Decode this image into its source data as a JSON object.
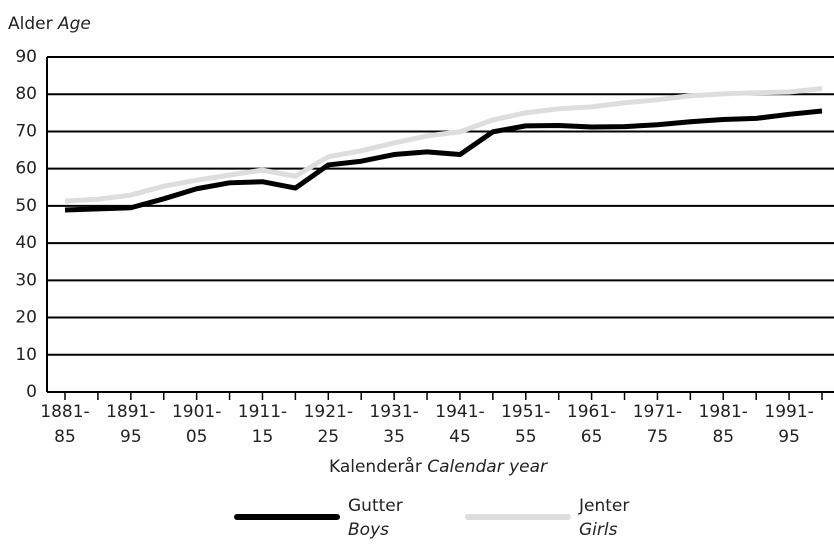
{
  "chart_data": {
    "type": "line",
    "y_label": {
      "main": "Alder",
      "translation": "Age"
    },
    "x_label": {
      "main": "Kalenderår",
      "translation": "Calendar year"
    },
    "categories": [
      [
        "1881-",
        "85"
      ],
      null,
      [
        "1891-",
        "95"
      ],
      null,
      [
        "1901-",
        "05"
      ],
      null,
      [
        "1911-",
        "15"
      ],
      null,
      [
        "1921-",
        "25"
      ],
      null,
      [
        "1931-",
        "35"
      ],
      null,
      [
        "1941-",
        "45"
      ],
      null,
      [
        "1951-",
        "55"
      ],
      null,
      [
        "1961-",
        "65"
      ],
      null,
      [
        "1971-",
        "75"
      ],
      null,
      [
        "1981-",
        "85"
      ],
      null,
      [
        "1991-",
        "95"
      ],
      null
    ],
    "series": [
      {
        "name": "Gutter",
        "translation": "Boys",
        "color": "#000000",
        "values": [
          48.9,
          49.2,
          49.5,
          51.9,
          54.6,
          56.2,
          56.5,
          54.8,
          61.0,
          62.0,
          63.8,
          64.5,
          63.8,
          69.9,
          71.5,
          71.6,
          71.2,
          71.3,
          71.8,
          72.6,
          73.2,
          73.5,
          74.6,
          75.5
        ]
      },
      {
        "name": "Jenter",
        "translation": "Girls",
        "color": "#dddddd",
        "values": [
          51.3,
          51.8,
          52.9,
          55.3,
          56.9,
          58.3,
          59.6,
          58.0,
          63.2,
          64.8,
          66.9,
          68.8,
          69.9,
          73.1,
          75.0,
          76.1,
          76.6,
          77.7,
          78.5,
          79.6,
          80.1,
          80.4,
          80.6,
          81.5
        ]
      }
    ],
    "ylim": [
      0,
      90
    ],
    "yticks": [
      0,
      10,
      20,
      30,
      40,
      50,
      60,
      70,
      80,
      90
    ],
    "grid": true
  }
}
